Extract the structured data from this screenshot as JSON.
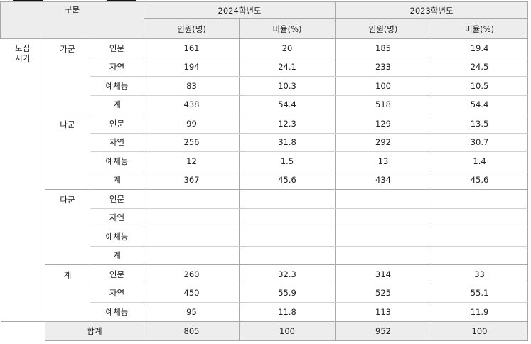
{
  "header": {
    "category_label": "구분",
    "years": [
      "2024학년도",
      "2023학년도"
    ],
    "col_count": "인원(명)",
    "col_ratio": "비율(%)"
  },
  "recruit_label": "모집\n시기",
  "groups": [
    {
      "name": "가군",
      "rows": [
        {
          "field": "인문",
          "c2024": "161",
          "r2024": "20",
          "c2023": "185",
          "r2023": "19.4"
        },
        {
          "field": "자연",
          "c2024": "194",
          "r2024": "24.1",
          "c2023": "233",
          "r2023": "24.5"
        },
        {
          "field": "예체능",
          "c2024": "83",
          "r2024": "10.3",
          "c2023": "100",
          "r2023": "10.5"
        },
        {
          "field": "계",
          "c2024": "438",
          "r2024": "54.4",
          "c2023": "518",
          "r2023": "54.4"
        }
      ]
    },
    {
      "name": "나군",
      "rows": [
        {
          "field": "인문",
          "c2024": "99",
          "r2024": "12.3",
          "c2023": "129",
          "r2023": "13.5"
        },
        {
          "field": "자연",
          "c2024": "256",
          "r2024": "31.8",
          "c2023": "292",
          "r2023": "30.7"
        },
        {
          "field": "예체능",
          "c2024": "12",
          "r2024": "1.5",
          "c2023": "13",
          "r2023": "1.4"
        },
        {
          "field": "계",
          "c2024": "367",
          "r2024": "45.6",
          "c2023": "434",
          "r2023": "45.6"
        }
      ]
    },
    {
      "name": "다군",
      "rows": [
        {
          "field": "인문",
          "c2024": "",
          "r2024": "",
          "c2023": "",
          "r2023": ""
        },
        {
          "field": "자연",
          "c2024": "",
          "r2024": "",
          "c2023": "",
          "r2023": ""
        },
        {
          "field": "예체능",
          "c2024": "",
          "r2024": "",
          "c2023": "",
          "r2023": ""
        },
        {
          "field": "계",
          "c2024": "",
          "r2024": "",
          "c2023": "",
          "r2023": ""
        }
      ]
    },
    {
      "name": "계",
      "rows": [
        {
          "field": "인문",
          "c2024": "260",
          "r2024": "32.3",
          "c2023": "314",
          "r2023": "33"
        },
        {
          "field": "자연",
          "c2024": "450",
          "r2024": "55.9",
          "c2023": "525",
          "r2023": "55.1"
        },
        {
          "field": "예체능",
          "c2024": "95",
          "r2024": "11.8",
          "c2023": "113",
          "r2023": "11.9"
        }
      ]
    }
  ],
  "total": {
    "label": "합계",
    "c2024": "805",
    "r2024": "100",
    "c2023": "952",
    "r2023": "100"
  }
}
